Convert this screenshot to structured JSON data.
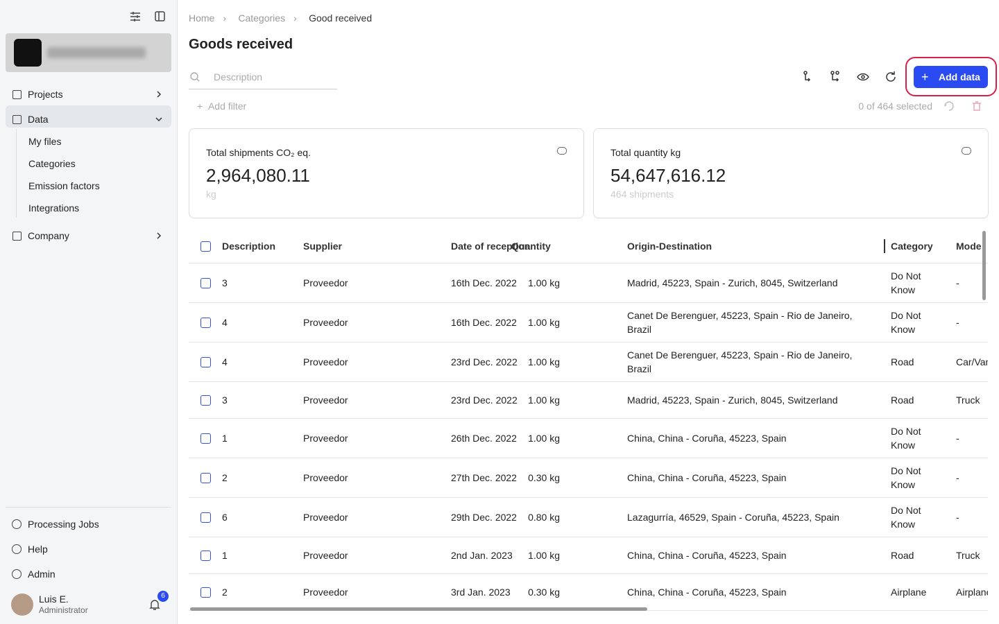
{
  "sidebar": {
    "nav": [
      {
        "label": "Projects"
      },
      {
        "label": "Data",
        "children": [
          "My files",
          "Categories",
          "Emission factors",
          "Integrations"
        ]
      },
      {
        "label": "Company"
      }
    ],
    "bottom": [
      "Processing Jobs",
      "Help",
      "Admin"
    ],
    "user": {
      "name": "Luis E.",
      "role": "Administrator",
      "notifications": "6"
    }
  },
  "breadcrumb": [
    "Home",
    "Categories",
    "Good received"
  ],
  "title": "Goods received",
  "search_placeholder": "Description",
  "add_filter": "Add filter",
  "selection": "0 of 464 selected",
  "add_button": "Add data",
  "cards": [
    {
      "label": "Total shipments CO₂ eq.",
      "value": "2,964,080.11",
      "sub": "kg"
    },
    {
      "label": "Total quantity kg",
      "value": "54,647,616.12",
      "sub": "464 shipments"
    }
  ],
  "table": {
    "headers": [
      "Description",
      "Supplier",
      "Date of reception",
      "Quantity",
      "Origin-Destination",
      "Category",
      "Mode"
    ],
    "rows": [
      [
        "3",
        "Proveedor",
        "16th Dec. 2022",
        "1.00 kg",
        "Madrid, 45223, Spain - Zurich, 8045, Switzerland",
        "Do Not Know",
        "-"
      ],
      [
        "4",
        "Proveedor",
        "16th Dec. 2022",
        "1.00 kg",
        "Canet De Berenguer, 45223, Spain - Rio de Janeiro, Brazil",
        "Do Not Know",
        "-"
      ],
      [
        "4",
        "Proveedor",
        "23rd Dec. 2022",
        "1.00 kg",
        "Canet De Berenguer, 45223, Spain - Rio de Janeiro, Brazil",
        "Road",
        "Car/Van"
      ],
      [
        "3",
        "Proveedor",
        "23rd Dec. 2022",
        "1.00 kg",
        "Madrid, 45223, Spain - Zurich, 8045, Switzerland",
        "Road",
        "Truck"
      ],
      [
        "1",
        "Proveedor",
        "26th Dec. 2022",
        "1.00 kg",
        "China, China - Coruña, 45223, Spain",
        "Do Not Know",
        "-"
      ],
      [
        "2",
        "Proveedor",
        "27th Dec. 2022",
        "0.30 kg",
        "China, China - Coruña, 45223, Spain",
        "Do Not Know",
        "-"
      ],
      [
        "6",
        "Proveedor",
        "29th Dec. 2022",
        "0.80 kg",
        "Lazagurría, 46529, Spain - Coruña, 45223, Spain",
        "Do Not Know",
        "-"
      ],
      [
        "1",
        "Proveedor",
        "2nd Jan. 2023",
        "1.00 kg",
        "China, China - Coruña, 45223, Spain",
        "Road",
        "Truck"
      ],
      [
        "2",
        "Proveedor",
        "3rd Jan. 2023",
        "0.30 kg",
        "China, China - Coruña, 45223, Spain",
        "Airplane",
        "Airplane"
      ]
    ]
  }
}
